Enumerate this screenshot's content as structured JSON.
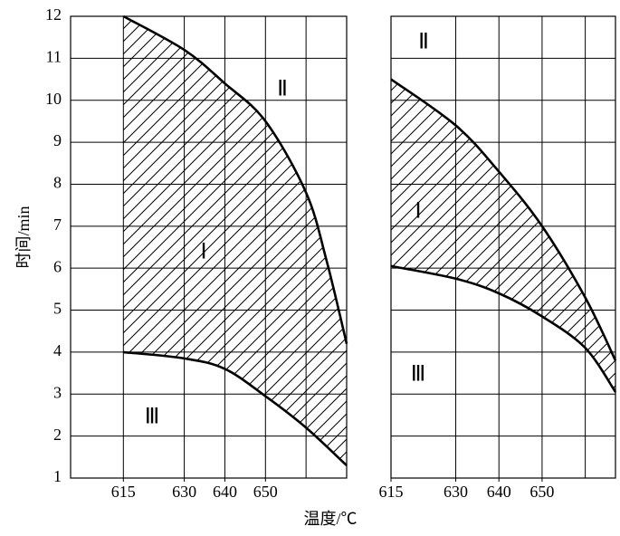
{
  "ylabel": "时间/min",
  "xlabel": "温度/℃",
  "chart_data": [
    {
      "type": "line",
      "xlim": [
        602,
        670
      ],
      "ylim": [
        1,
        12
      ],
      "xticks": [
        615,
        630,
        640,
        650
      ],
      "xgrid": [
        615,
        630,
        640,
        650,
        660
      ],
      "yticks": [
        1,
        2,
        3,
        4,
        5,
        6,
        7,
        8,
        9,
        10,
        11,
        12
      ],
      "series": [
        {
          "color": "#000000",
          "x": [
            615,
            630,
            640,
            650,
            660,
            665,
            670
          ],
          "values": [
            12,
            11.2,
            10.4,
            9.5,
            7.8,
            6.2,
            4.2
          ]
        },
        {
          "color": "#000000",
          "x": [
            615,
            630,
            640,
            650,
            660,
            670
          ],
          "values": [
            4.0,
            3.85,
            3.6,
            2.95,
            2.2,
            1.3
          ]
        }
      ],
      "annotations": [
        "Ⅱ",
        "Ⅰ",
        "Ⅲ"
      ]
    },
    {
      "type": "line",
      "xlim": [
        615,
        667
      ],
      "ylim": [
        1,
        12
      ],
      "xticks": [
        615,
        630,
        640,
        650
      ],
      "xgrid": [
        630,
        640,
        650,
        660
      ],
      "ygrid": [
        1,
        2,
        3,
        4,
        5,
        6,
        7,
        8,
        9,
        10,
        11,
        12
      ],
      "series": [
        {
          "color": "#000000",
          "x": [
            615,
            630,
            640,
            650,
            660,
            667
          ],
          "values": [
            10.5,
            9.4,
            8.3,
            7.0,
            5.3,
            3.8
          ]
        },
        {
          "color": "#000000",
          "x": [
            615,
            630,
            640,
            650,
            660,
            667
          ],
          "values": [
            6.05,
            5.75,
            5.4,
            4.85,
            4.1,
            3.05
          ]
        }
      ],
      "annotations": [
        "Ⅱ",
        "Ⅰ",
        "Ⅲ"
      ]
    }
  ]
}
